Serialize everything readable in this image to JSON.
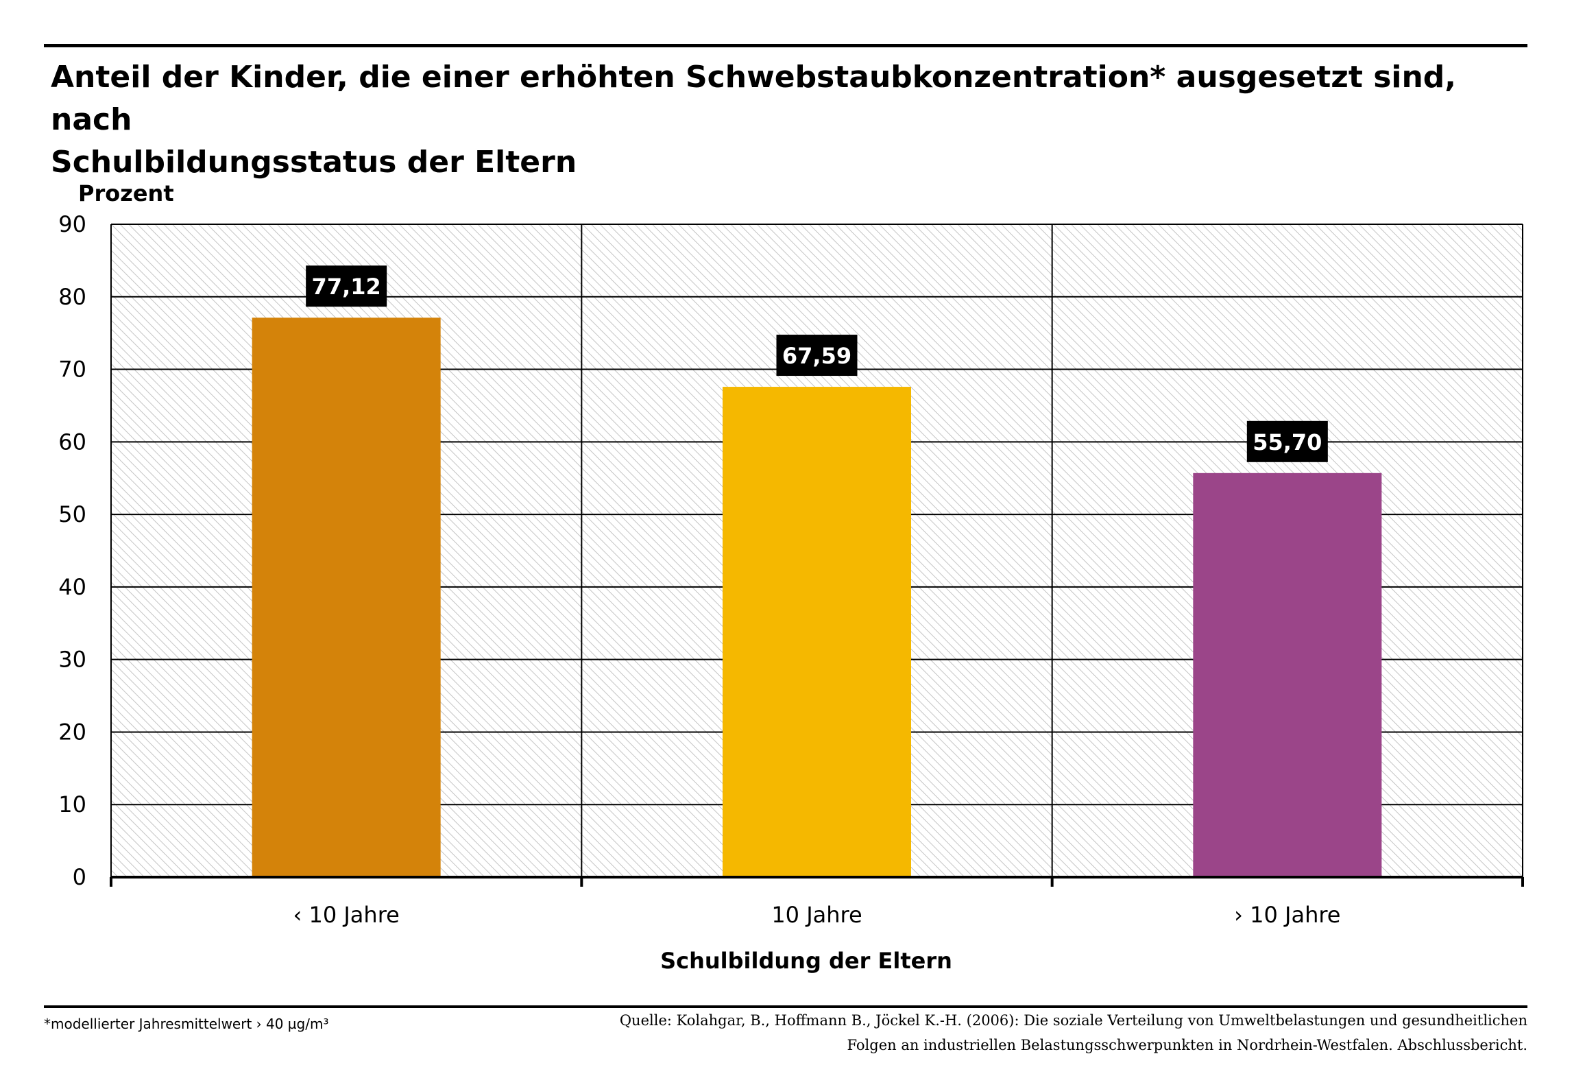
{
  "title_line1": "Anteil der Kinder, die einer erhöhten Schwebstaubkonzentration* ausgesetzt sind, nach",
  "title_line2": "Schulbildungsstatus der Eltern",
  "chart_data": {
    "type": "bar",
    "ylabel": "Prozent",
    "xlabel": "Schulbildung der Eltern",
    "categories": [
      "‹ 10 Jahre",
      "10 Jahre",
      "› 10 Jahre"
    ],
    "values": [
      77.12,
      67.59,
      55.7
    ],
    "value_labels": [
      "77,12",
      "67,59",
      "55,70"
    ],
    "colors": [
      "#d4830a",
      "#f5b800",
      "#9b4589"
    ],
    "ylim": [
      0,
      90
    ],
    "yticks": [
      0,
      10,
      20,
      30,
      40,
      50,
      60,
      70,
      80,
      90
    ],
    "grid": true,
    "legend": "none"
  },
  "footnote": "*modellierter Jahresmittelwert › 40 µg/m³",
  "source_line1": "Quelle: Kolahgar, B., Hoffmann B., Jöckel K.-H. (2006): Die soziale Verteilung von Umweltbelastungen und gesundheitlichen",
  "source_line2": "Folgen an industriellen Belastungsschwerpunkten in Nordrhein-Westfalen. Abschlussbericht."
}
